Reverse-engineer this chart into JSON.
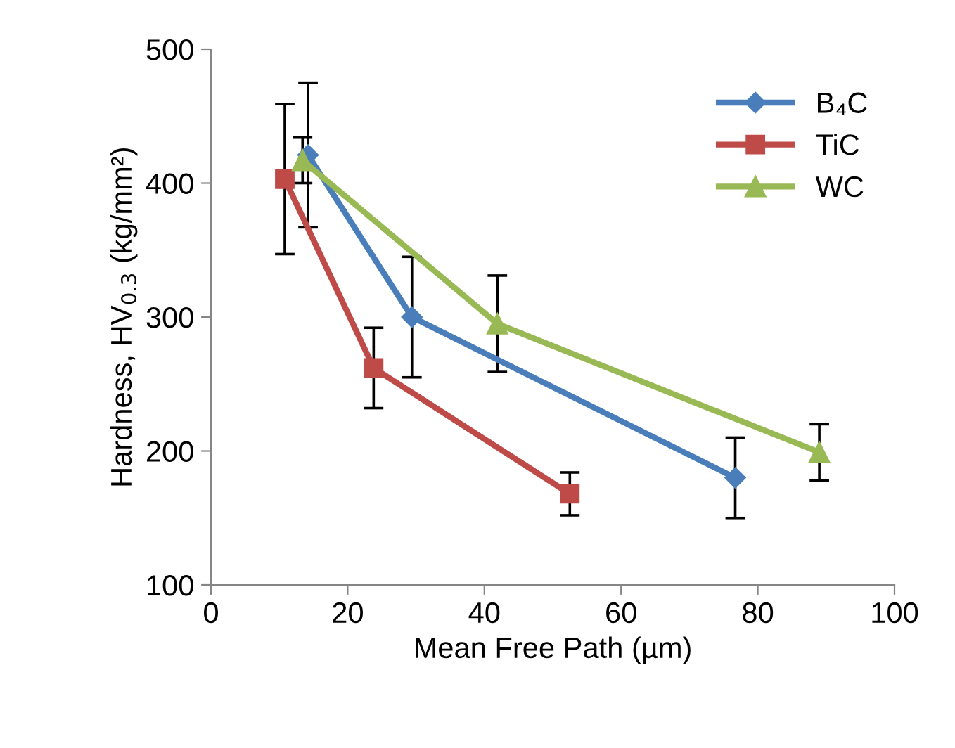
{
  "chart_data": {
    "type": "line",
    "xlabel": "Mean Free Path (µm)",
    "ylabel": "Hardness, HV$_{0.3}$ (kg/mm²)",
    "xlim": [
      0,
      100
    ],
    "xticks": [
      0,
      20,
      40,
      60,
      80,
      100
    ],
    "ylim": [
      100,
      500
    ],
    "yticks": [
      100,
      200,
      300,
      400,
      500
    ],
    "grid": false,
    "legend": "top right",
    "series": [
      {
        "name": "B₄C",
        "color": "#4a7ebb",
        "marker": "diamond",
        "x": [
          14.2,
          29.4,
          76.7
        ],
        "values": [
          421,
          300,
          180
        ],
        "errors": [
          54,
          45,
          30
        ]
      },
      {
        "name": "TiC",
        "color": "#be4b48",
        "marker": "square",
        "x": [
          10.8,
          23.8,
          52.5
        ],
        "values": [
          403,
          262,
          168
        ],
        "errors": [
          56,
          30,
          16
        ]
      },
      {
        "name": "WC",
        "color": "#98b954",
        "marker": "triangle",
        "x": [
          13.4,
          41.9,
          89.0
        ],
        "values": [
          417,
          295,
          199
        ],
        "errors": [
          17,
          36,
          21
        ]
      }
    ]
  }
}
